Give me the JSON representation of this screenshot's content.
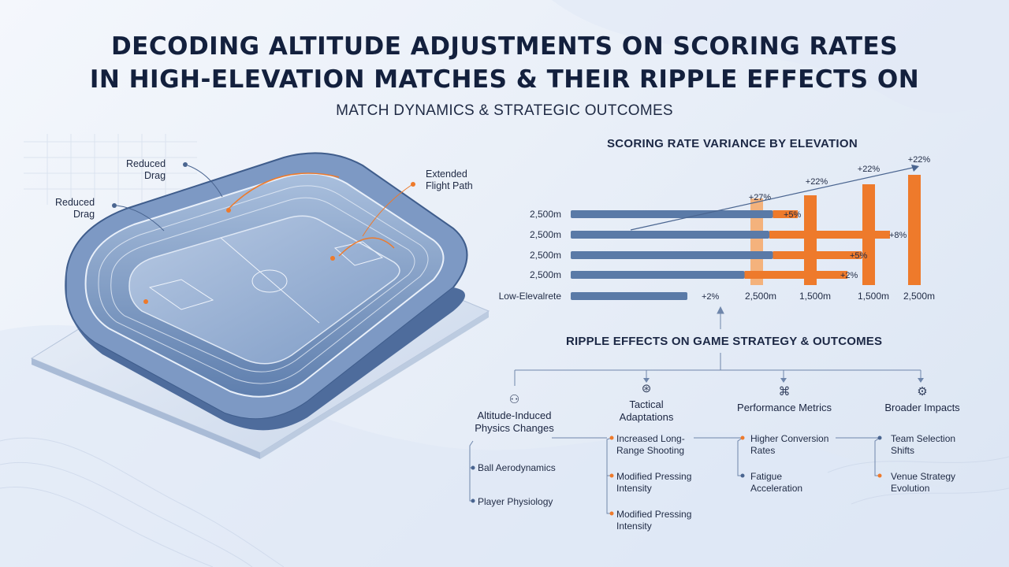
{
  "title": {
    "line1": "DECODING ALTITUDE ADJUSTMENTS ON SCORING RATES",
    "line2": "IN HIGH-ELEVATION MATCHES & THEIR RIPPLE EFFECTS ON",
    "subtitle": "MATCH DYNAMICS & STRATEGIC OUTCOMES"
  },
  "stadium": {
    "annotations": [
      {
        "id": "a1",
        "text": "Reduced\nDrag"
      },
      {
        "id": "a2",
        "text": "Reduced\nDrag"
      },
      {
        "id": "a3",
        "text": "Extended\nFlight Path"
      }
    ]
  },
  "chart_data": {
    "type": "bar",
    "title": "SCORING RATE VARIANCE BY ELEVATION",
    "row_labels": [
      "2,500m",
      "2,500m",
      "2,500m",
      "2,500m",
      "Low-Elevalrete"
    ],
    "row_values_blue": [
      57,
      56,
      57,
      49,
      0
    ],
    "row_values_orange": [
      7,
      34,
      25,
      29,
      0
    ],
    "row_pct_labels": [
      "+5%",
      "+8%",
      "+5%",
      "+2%",
      "+2%"
    ],
    "column_labels": [
      "2,500m",
      "1,500m",
      "1,500m",
      "2,500m"
    ],
    "column_pct_labels": [
      "+27%",
      "+22%",
      "+22%",
      "+22%"
    ],
    "column_values": [
      27,
      22,
      22,
      22
    ],
    "colors": {
      "blue": "#5a7aa7",
      "orange": "#ee7a2b",
      "light_orange": "#f4b27c"
    }
  },
  "ripple": {
    "title": "RIPPLE EFFECTS ON GAME STRATEGY & OUTCOMES",
    "categories": [
      {
        "label": "Altitude-Induced\nPhysics Changes",
        "icon": "brain-icon",
        "items": [
          "Ball Aerodynamics",
          "Player Physiology"
        ]
      },
      {
        "label": "Tactical\nAdaptations",
        "icon": "tactics-icon",
        "items": [
          "Increased Long-\nRange Shooting",
          "Modified Pressing\nIntensity",
          "Modified Pressing\nIntensity"
        ]
      },
      {
        "label": "Performance Metrics",
        "icon": "metrics-icon",
        "items": [
          "Higher Conversion\nRates",
          "Fatigue\nAcceleration"
        ]
      },
      {
        "label": "Broader Impacts",
        "icon": "gear-icon",
        "items": [
          "Team Selection\nShifts",
          "Venue Strategy\nEvolution"
        ]
      }
    ]
  }
}
